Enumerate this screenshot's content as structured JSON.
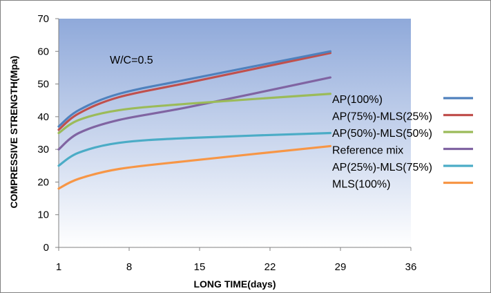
{
  "chart_data": {
    "type": "line",
    "title": "",
    "xlabel": "LONG TIME(days)",
    "ylabel": "COMPRESSIVE STRENGTH(Mpa)",
    "xlim": [
      1,
      36
    ],
    "ylim": [
      0,
      70
    ],
    "x_ticks": [
      1,
      8,
      15,
      22,
      29,
      36
    ],
    "y_ticks": [
      0,
      10,
      20,
      30,
      40,
      50,
      60,
      70
    ],
    "grid": false,
    "plot_background": "gradient-blue",
    "legend_position": "right",
    "annotation": "W/C=0.5",
    "x": [
      1,
      3,
      7,
      14,
      28
    ],
    "series": [
      {
        "name": "AP(100%)",
        "color": "#4F81BD",
        "values": [
          37,
          42,
          47,
          51.5,
          60
        ]
      },
      {
        "name": "AP(75%)-MLS(25%)",
        "color": "#C0504D",
        "values": [
          36,
          41,
          46,
          50.5,
          59.5
        ]
      },
      {
        "name": "AP(50%)-MLS(50%)",
        "color": "#9BBB59",
        "values": [
          35,
          39,
          42,
          44,
          47
        ]
      },
      {
        "name": "Reference mix",
        "color": "#8064A2",
        "values": [
          30,
          35,
          39,
          43,
          52
        ]
      },
      {
        "name": "AP(25%)-MLS(75%)",
        "color": "#4BACC6",
        "values": [
          25,
          29,
          32,
          33.5,
          35
        ]
      },
      {
        "name": "MLS(100%)",
        "color": "#F79646",
        "values": [
          18,
          21,
          24,
          26.5,
          31
        ]
      }
    ]
  }
}
